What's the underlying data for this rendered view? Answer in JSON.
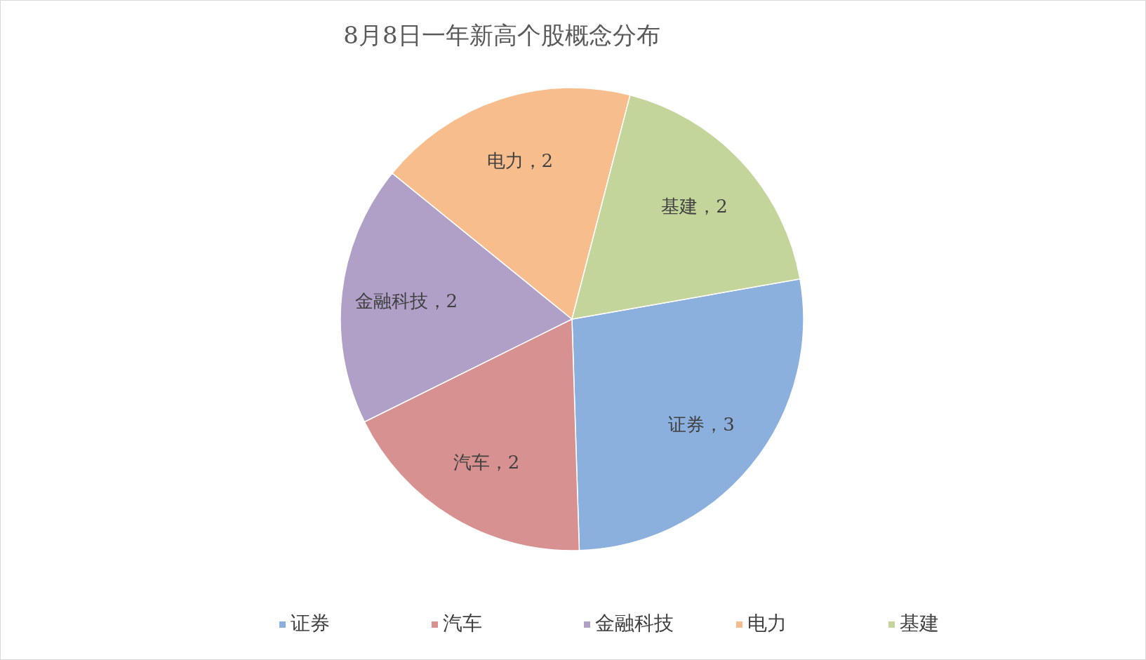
{
  "chart_data": {
    "type": "pie",
    "title": "8月8日一年新高个股概念分布",
    "categories": [
      "证券",
      "汽车",
      "金融科技",
      "电力",
      "基建"
    ],
    "values": [
      3,
      2,
      2,
      2,
      2
    ],
    "value_labels": [
      "证券，3",
      "汽车，2",
      "金融科技，2",
      "电力，2",
      "基建，2"
    ],
    "colors": [
      "#8cb0dd",
      "#d69190",
      "#b09fc6",
      "#f7bd8d",
      "#c3d59a"
    ],
    "legend": "bottom"
  }
}
